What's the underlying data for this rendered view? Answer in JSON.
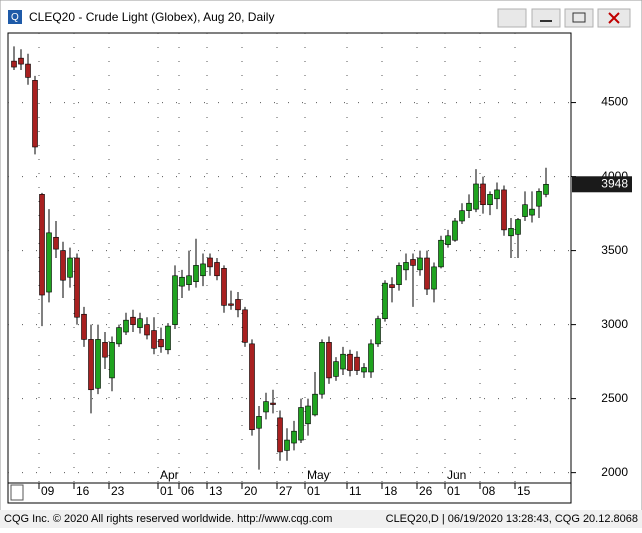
{
  "window": {
    "title": "CLEQ20 - Crude Light (Globex), Aug 20, Daily"
  },
  "chart_data": {
    "type": "candlestick",
    "categories": [
      null,
      null,
      null,
      null,
      "09",
      null,
      null,
      null,
      null,
      "16",
      null,
      null,
      null,
      null,
      "23",
      null,
      null,
      null,
      null,
      null,
      null,
      "01",
      null,
      null,
      "06",
      null,
      null,
      null,
      "13",
      null,
      null,
      null,
      null,
      "20",
      null,
      null,
      null,
      null,
      "27",
      null,
      null,
      null,
      "01",
      null,
      null,
      null,
      null,
      null,
      "11",
      null,
      null,
      null,
      null,
      "18",
      null,
      null,
      null,
      null,
      "26",
      null,
      null,
      null,
      "01",
      null,
      null,
      null,
      null,
      "08",
      null,
      null,
      null,
      null,
      "15",
      null,
      null,
      null,
      null
    ],
    "month_labels": [
      "Apr",
      "May",
      "Jun"
    ],
    "open": [
      4780,
      4800,
      4760,
      4650,
      3880,
      3220,
      3590,
      3500,
      3320,
      3450,
      3070,
      2900,
      2570,
      2880,
      2640,
      2870,
      2950,
      3050,
      2980,
      3000,
      2960,
      2900,
      2830,
      3000,
      3260,
      3270,
      3290,
      3330,
      3450,
      3420,
      3380,
      3140,
      3170,
      3100,
      2870,
      2300,
      2410,
      2470,
      2370,
      2150,
      2200,
      2220,
      2330,
      2390,
      2530,
      2880,
      2650,
      2700,
      2800,
      2780,
      2680,
      2680,
      2870,
      3040,
      3270,
      3270,
      3370,
      3440,
      3370,
      3450,
      3240,
      3390,
      3540,
      3570,
      3700,
      3770,
      3780,
      3950,
      3810,
      3850,
      3910,
      3600,
      3610,
      3730,
      3740,
      3800,
      3880
    ],
    "high": [
      4880,
      4860,
      4830,
      4680,
      3890,
      3780,
      3700,
      3560,
      3520,
      3480,
      3120,
      3000,
      3000,
      2950,
      2920,
      3000,
      3080,
      3100,
      3080,
      3050,
      3050,
      2980,
      3010,
      3400,
      3370,
      3500,
      3580,
      3480,
      3480,
      3450,
      3400,
      3230,
      3220,
      3120,
      2900,
      2450,
      2540,
      2560,
      2420,
      2300,
      2350,
      2500,
      2500,
      2680,
      2900,
      2920,
      2780,
      2850,
      2830,
      2820,
      2740,
      2900,
      3060,
      3300,
      3320,
      3420,
      3480,
      3480,
      3500,
      3500,
      3420,
      3600,
      3640,
      3720,
      3820,
      3880,
      4050,
      4000,
      3900,
      3960,
      3940,
      3720,
      3720,
      3900,
      3900,
      3920,
      4060
    ],
    "low": [
      4720,
      4720,
      4620,
      4150,
      2990,
      3150,
      3450,
      3180,
      3250,
      3000,
      2850,
      2400,
      2530,
      2700,
      2550,
      2850,
      2930,
      2950,
      2940,
      2900,
      2800,
      2810,
      2800,
      2970,
      3180,
      3230,
      3250,
      3260,
      3330,
      3300,
      3080,
      3100,
      3050,
      2850,
      2250,
      2020,
      2360,
      2400,
      2080,
      2080,
      2150,
      2200,
      2250,
      2380,
      2500,
      2600,
      2620,
      2660,
      2650,
      2660,
      2640,
      2640,
      2850,
      3020,
      3150,
      3230,
      3300,
      3120,
      3330,
      3200,
      3150,
      3380,
      3520,
      3560,
      3680,
      3720,
      3760,
      3750,
      3740,
      3780,
      3600,
      3450,
      3450,
      3700,
      3690,
      3720,
      3860
    ],
    "close": [
      4740,
      4760,
      4670,
      4200,
      3200,
      3620,
      3510,
      3300,
      3450,
      3050,
      2900,
      2560,
      2900,
      2780,
      2880,
      2980,
      3030,
      3000,
      3040,
      2930,
      2840,
      2850,
      2990,
      3330,
      3320,
      3330,
      3400,
      3410,
      3390,
      3330,
      3130,
      3130,
      3100,
      2880,
      2290,
      2380,
      2480,
      2460,
      2140,
      2220,
      2280,
      2440,
      2450,
      2530,
      2880,
      2640,
      2750,
      2800,
      2690,
      2690,
      2710,
      2870,
      3040,
      3280,
      3250,
      3400,
      3420,
      3400,
      3450,
      3240,
      3390,
      3570,
      3600,
      3700,
      3770,
      3820,
      3950,
      3810,
      3880,
      3910,
      3640,
      3650,
      3710,
      3810,
      3780,
      3900,
      3948
    ],
    "up_color": "#1fa31f",
    "down_color": "#a82020",
    "ylim": [
      1930,
      4970
    ],
    "yticks": [
      2000,
      2500,
      3000,
      3500,
      4000,
      4500
    ],
    "last_value": 3948,
    "grid": true
  },
  "footer": {
    "left": "CQG Inc. © 2020 All rights reserved worldwide. http://www.cqg.com",
    "right": "CLEQ20,D | 06/19/2020 13:28:43, CQG 20.12.8068"
  }
}
